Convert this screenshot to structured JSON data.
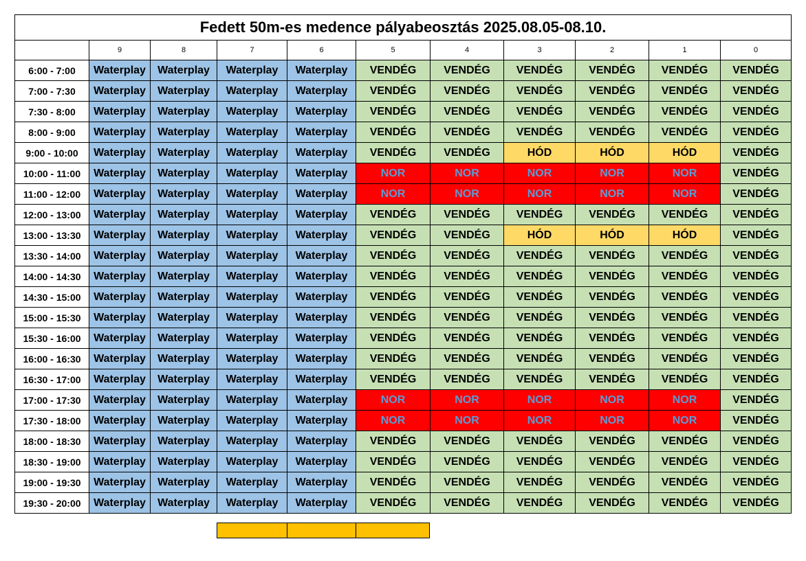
{
  "title": "Fedett 50m-es medence pályabeosztás 2025.08.05-08.10.",
  "lanes": [
    "9",
    "8",
    "7",
    "6",
    "5",
    "4",
    "3",
    "2",
    "1",
    "0"
  ],
  "colors": {
    "waterplay": "#9dc3e6",
    "vendeg": "#c6e0b4",
    "hod": "#ffd966",
    "nor_bg": "#ff0000",
    "nor_text": "#5b9bd5",
    "footer_strip": "#ffc000"
  },
  "rows": [
    {
      "time": "6:00 - 7:00",
      "cells": [
        "Waterplay",
        "Waterplay",
        "Waterplay",
        "Waterplay",
        "VENDÉG",
        "VENDÉG",
        "VENDÉG",
        "VENDÉG",
        "VENDÉG",
        "VENDÉG"
      ]
    },
    {
      "time": "7:00 - 7:30",
      "cells": [
        "Waterplay",
        "Waterplay",
        "Waterplay",
        "Waterplay",
        "VENDÉG",
        "VENDÉG",
        "VENDÉG",
        "VENDÉG",
        "VENDÉG",
        "VENDÉG"
      ]
    },
    {
      "time": "7:30 - 8:00",
      "cells": [
        "Waterplay",
        "Waterplay",
        "Waterplay",
        "Waterplay",
        "VENDÉG",
        "VENDÉG",
        "VENDÉG",
        "VENDÉG",
        "VENDÉG",
        "VENDÉG"
      ]
    },
    {
      "time": "8:00 - 9:00",
      "cells": [
        "Waterplay",
        "Waterplay",
        "Waterplay",
        "Waterplay",
        "VENDÉG",
        "VENDÉG",
        "VENDÉG",
        "VENDÉG",
        "VENDÉG",
        "VENDÉG"
      ]
    },
    {
      "time": "9:00 - 10:00",
      "cells": [
        "Waterplay",
        "Waterplay",
        "Waterplay",
        "Waterplay",
        "VENDÉG",
        "VENDÉG",
        "HÓD",
        "HÓD",
        "HÓD",
        "VENDÉG"
      ]
    },
    {
      "time": "10:00 - 11:00",
      "cells": [
        "Waterplay",
        "Waterplay",
        "Waterplay",
        "Waterplay",
        "NOR",
        "NOR",
        "NOR",
        "NOR",
        "NOR",
        "VENDÉG"
      ]
    },
    {
      "time": "11:00 - 12:00",
      "cells": [
        "Waterplay",
        "Waterplay",
        "Waterplay",
        "Waterplay",
        "NOR",
        "NOR",
        "NOR",
        "NOR",
        "NOR",
        "VENDÉG"
      ]
    },
    {
      "time": "12:00 - 13:00",
      "cells": [
        "Waterplay",
        "Waterplay",
        "Waterplay",
        "Waterplay",
        "VENDÉG",
        "VENDÉG",
        "VENDÉG",
        "VENDÉG",
        "VENDÉG",
        "VENDÉG"
      ]
    },
    {
      "time": "13:00 - 13:30",
      "cells": [
        "Waterplay",
        "Waterplay",
        "Waterplay",
        "Waterplay",
        "VENDÉG",
        "VENDÉG",
        "HÓD",
        "HÓD",
        "HÓD",
        "VENDÉG"
      ]
    },
    {
      "time": "13:30 - 14:00",
      "cells": [
        "Waterplay",
        "Waterplay",
        "Waterplay",
        "Waterplay",
        "VENDÉG",
        "VENDÉG",
        "VENDÉG",
        "VENDÉG",
        "VENDÉG",
        "VENDÉG"
      ]
    },
    {
      "time": "14:00 - 14:30",
      "cells": [
        "Waterplay",
        "Waterplay",
        "Waterplay",
        "Waterplay",
        "VENDÉG",
        "VENDÉG",
        "VENDÉG",
        "VENDÉG",
        "VENDÉG",
        "VENDÉG"
      ]
    },
    {
      "time": "14:30 - 15:00",
      "cells": [
        "Waterplay",
        "Waterplay",
        "Waterplay",
        "Waterplay",
        "VENDÉG",
        "VENDÉG",
        "VENDÉG",
        "VENDÉG",
        "VENDÉG",
        "VENDÉG"
      ]
    },
    {
      "time": "15:00 - 15:30",
      "cells": [
        "Waterplay",
        "Waterplay",
        "Waterplay",
        "Waterplay",
        "VENDÉG",
        "VENDÉG",
        "VENDÉG",
        "VENDÉG",
        "VENDÉG",
        "VENDÉG"
      ]
    },
    {
      "time": "15:30 - 16:00",
      "cells": [
        "Waterplay",
        "Waterplay",
        "Waterplay",
        "Waterplay",
        "VENDÉG",
        "VENDÉG",
        "VENDÉG",
        "VENDÉG",
        "VENDÉG",
        "VENDÉG"
      ]
    },
    {
      "time": "16:00 - 16:30",
      "cells": [
        "Waterplay",
        "Waterplay",
        "Waterplay",
        "Waterplay",
        "VENDÉG",
        "VENDÉG",
        "VENDÉG",
        "VENDÉG",
        "VENDÉG",
        "VENDÉG"
      ]
    },
    {
      "time": "16:30 - 17:00",
      "cells": [
        "Waterplay",
        "Waterplay",
        "Waterplay",
        "Waterplay",
        "VENDÉG",
        "VENDÉG",
        "VENDÉG",
        "VENDÉG",
        "VENDÉG",
        "VENDÉG"
      ]
    },
    {
      "time": "17:00 - 17:30",
      "cells": [
        "Waterplay",
        "Waterplay",
        "Waterplay",
        "Waterplay",
        "NOR",
        "NOR",
        "NOR",
        "NOR",
        "NOR",
        "VENDÉG"
      ]
    },
    {
      "time": "17:30 - 18:00",
      "cells": [
        "Waterplay",
        "Waterplay",
        "Waterplay",
        "Waterplay",
        "NOR",
        "NOR",
        "NOR",
        "NOR",
        "NOR",
        "VENDÉG"
      ]
    },
    {
      "time": "18:00 - 18:30",
      "cells": [
        "Waterplay",
        "Waterplay",
        "Waterplay",
        "Waterplay",
        "VENDÉG",
        "VENDÉG",
        "VENDÉG",
        "VENDÉG",
        "VENDÉG",
        "VENDÉG"
      ]
    },
    {
      "time": "18:30 - 19:00",
      "cells": [
        "Waterplay",
        "Waterplay",
        "Waterplay",
        "Waterplay",
        "VENDÉG",
        "VENDÉG",
        "VENDÉG",
        "VENDÉG",
        "VENDÉG",
        "VENDÉG"
      ]
    },
    {
      "time": "19:00 - 19:30",
      "cells": [
        "Waterplay",
        "Waterplay",
        "Waterplay",
        "Waterplay",
        "VENDÉG",
        "VENDÉG",
        "VENDÉG",
        "VENDÉG",
        "VENDÉG",
        "VENDÉG"
      ]
    },
    {
      "time": "19:30 - 20:00",
      "cells": [
        "Waterplay",
        "Waterplay",
        "Waterplay",
        "Waterplay",
        "VENDÉG",
        "VENDÉG",
        "VENDÉG",
        "VENDÉG",
        "VENDÉG",
        "VENDÉG"
      ]
    }
  ]
}
